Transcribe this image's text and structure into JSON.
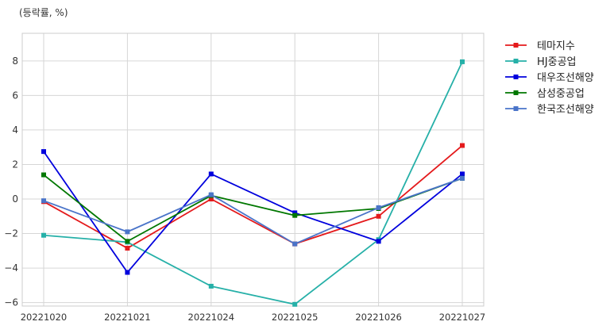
{
  "chart_data": {
    "type": "line",
    "unit_label": "(등락률, %)",
    "x": [
      "20221020",
      "20221021",
      "20221024",
      "20221025",
      "20221026",
      "20221027"
    ],
    "ylim": [
      -6.2,
      9.6
    ],
    "yticks": [
      -6,
      -4,
      -2,
      0,
      2,
      4,
      6,
      8
    ],
    "grid": true,
    "legend_position": "outside-right",
    "series": [
      {
        "name": "테마지수",
        "color": "#e41a1c",
        "values": [
          -0.15,
          -2.85,
          0.0,
          -2.6,
          -1.0,
          3.1
        ]
      },
      {
        "name": "HJ중공업",
        "color": "#26b0a8",
        "values": [
          -2.1,
          -2.5,
          -5.05,
          -6.1,
          -2.35,
          7.95
        ]
      },
      {
        "name": "대우조선해양",
        "color": "#0000dd",
        "values": [
          2.75,
          -4.25,
          1.45,
          -0.8,
          -2.45,
          1.45
        ]
      },
      {
        "name": "삼성중공업",
        "color": "#007700",
        "values": [
          1.4,
          -2.45,
          0.2,
          -0.95,
          -0.55,
          1.2
        ]
      },
      {
        "name": "한국조선해양",
        "color": "#4a74c9",
        "values": [
          -0.1,
          -1.9,
          0.25,
          -2.6,
          -0.5,
          1.2
        ]
      }
    ]
  }
}
